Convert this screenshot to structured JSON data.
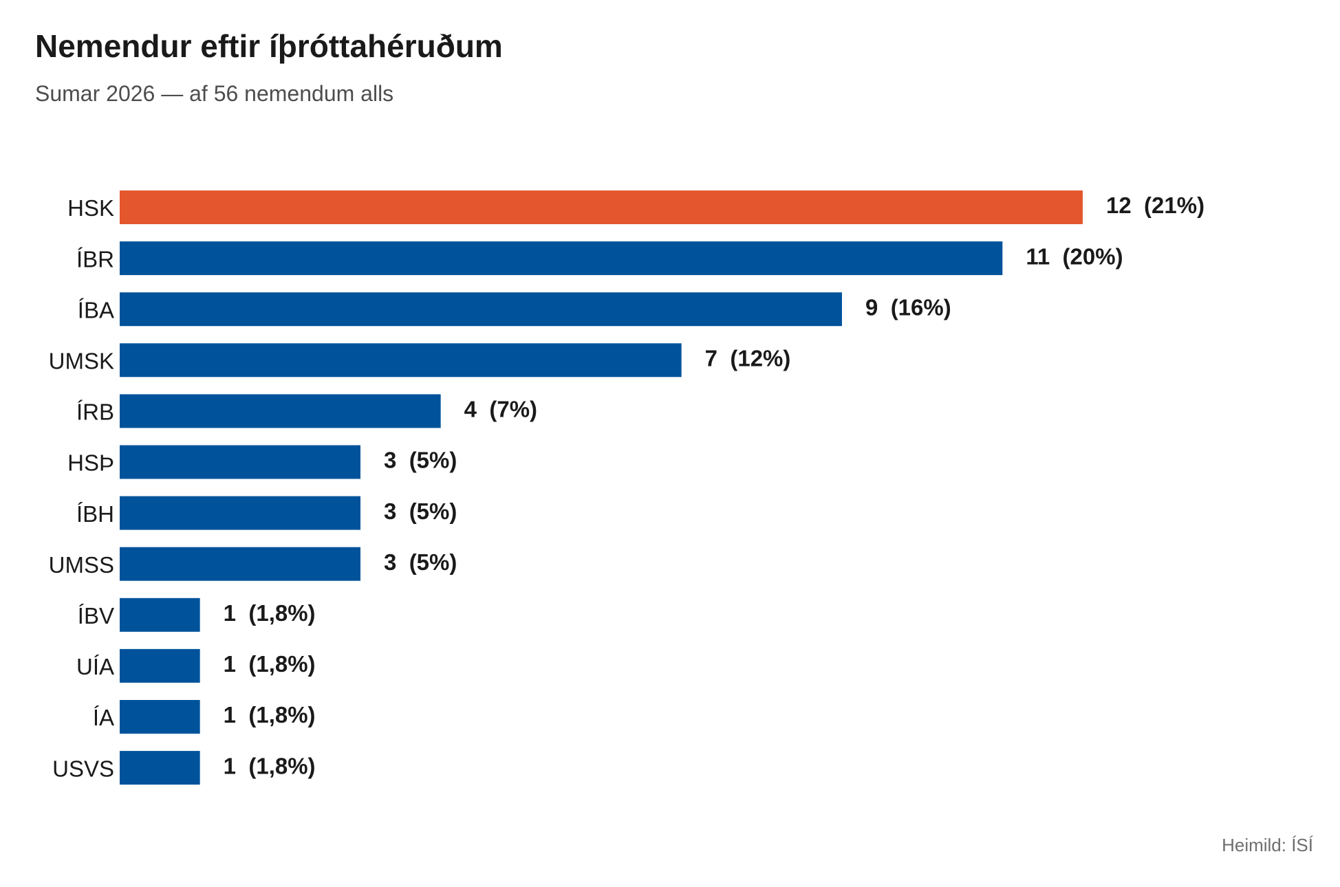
{
  "header": {
    "title": "Nemendur eftir íþróttahéruðum",
    "subtitle": "Sumar 2026 — af 56 nemendum alls"
  },
  "footer": {
    "source": "Heimild: ÍSÍ"
  },
  "colors": {
    "highlight": "#e4572e",
    "bar": "#00539b"
  },
  "chart_data": {
    "type": "bar",
    "orientation": "horizontal",
    "title": "Nemendur eftir íþróttahéruðum",
    "subtitle": "Sumar 2026 — af 56 nemendum alls",
    "categories": [
      "HSK",
      "ÍBR",
      "ÍBA",
      "UMSK",
      "ÍRB",
      "HSÞ",
      "ÍBH",
      "UMSS",
      "ÍBV",
      "UÍA",
      "ÍA",
      "USVS"
    ],
    "values": [
      12,
      11,
      9,
      7,
      4,
      3,
      3,
      3,
      1,
      1,
      1,
      1
    ],
    "data_labels": [
      "12  (21%)",
      "11  (20%)",
      "9  (16%)",
      "7  (12%)",
      "4  (7%)",
      "3  (5%)",
      "3  (5%)",
      "3  (5%)",
      "1  (1,8%)",
      "1  (1,8%)",
      "1  (1,8%)",
      "1  (1,8%)"
    ],
    "highlight_index": 0,
    "xlim": [
      0,
      12
    ],
    "grid": false,
    "legend": "none"
  }
}
